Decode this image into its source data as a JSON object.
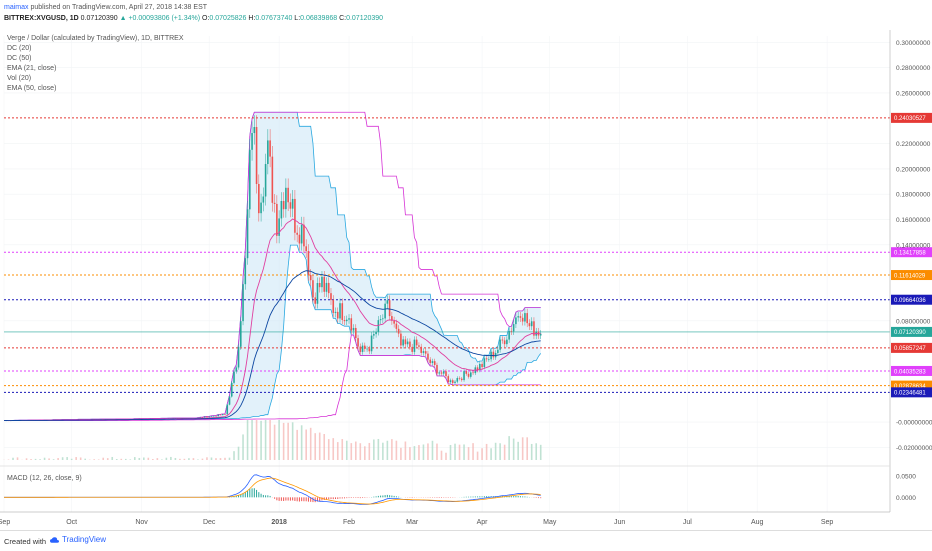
{
  "header": {
    "user": "maimax",
    "published": "published on TradingView.com, April 27, 2018 14:38 EST",
    "symbol": "BITTREX:XVGUSD, 1D",
    "last": "0.07120390",
    "change": "▲ +0.00093806 (+1.34%)",
    "o_label": "O:",
    "o": "0.07025826",
    "h_label": "H:",
    "h": "0.07673740",
    "l_label": "L:",
    "l": "0.06839868",
    "c_label": "C:",
    "c": "0.07120390"
  },
  "legend": {
    "title": "Verge / Dollar (calculated by TradingView), 1D, BITTREX",
    "indicators": [
      "DC (20)",
      "DC (50)",
      "EMA (21, close)",
      "Vol (20)",
      "EMA (50, close)"
    ],
    "macd": "MACD (12, 26, close, 9)"
  },
  "footer": {
    "created": "Created with",
    "brand": "TradingView"
  },
  "colors": {
    "up": "#26a69a",
    "down": "#ef5350",
    "dc20": "#29a8e0",
    "dc50": "#d633d6",
    "ema21": "#e040a0",
    "ema50": "#0d47a1",
    "macd": "#2962ff",
    "signal": "#ff9800",
    "red_level": "#e53935",
    "magenta_level": "#e040fb",
    "orange_level": "#fb8c00",
    "blue_level": "#1a1ab8"
  },
  "chart_data": {
    "type": "candlestick",
    "x_tick_labels": [
      "Sep",
      "Oct",
      "Nov",
      "Dec",
      "2018",
      "Feb",
      "Mar",
      "Apr",
      "May",
      "Jun",
      "Jul",
      "Aug",
      "Sep"
    ],
    "y_tick_labels": [
      "0.30000000",
      "0.28000000",
      "0.26000000",
      "0.22000000",
      "0.20000000",
      "0.18000000",
      "0.16000000",
      "0.14000000",
      "0.08000000",
      "-0.00000000",
      "-0.02000000"
    ],
    "ylim": [
      -0.03,
      0.305
    ],
    "horizontal_levels": [
      {
        "value": 0.24030527,
        "label": "0.24030527",
        "color": "#e53935"
      },
      {
        "value": 0.13417858,
        "label": "0.13417858",
        "color": "#e040fb"
      },
      {
        "value": 0.11614029,
        "label": "0.11614029",
        "color": "#fb8c00"
      },
      {
        "value": 0.09664036,
        "label": "0.09664036",
        "color": "#1a1ab8"
      },
      {
        "value": 0.05857247,
        "label": "0.05857247",
        "color": "#e53935"
      },
      {
        "value": 0.04035283,
        "label": "0.04035283",
        "color": "#e040fb"
      },
      {
        "value": 0.02878634,
        "label": "0.02878634",
        "color": "#fb8c00"
      },
      {
        "value": 0.02346481,
        "label": "0.02346481",
        "color": "#1a1ab8"
      }
    ],
    "last_price": {
      "value": 0.0712039,
      "label": "0.07120390"
    },
    "price_series": [
      {
        "date": "2017-09-01",
        "close": 0.0012
      },
      {
        "date": "2017-11-25",
        "close": 0.003
      },
      {
        "date": "2017-12-08",
        "close": 0.006
      },
      {
        "date": "2017-12-13",
        "close": 0.045
      },
      {
        "date": "2017-12-17",
        "close": 0.125
      },
      {
        "date": "2017-12-20",
        "close": 0.24
      },
      {
        "date": "2017-12-23",
        "close": 0.18
      },
      {
        "date": "2017-12-27",
        "close": 0.21
      },
      {
        "date": "2017-12-31",
        "close": 0.16
      },
      {
        "date": "2018-01-04",
        "close": 0.19
      },
      {
        "date": "2018-01-08",
        "close": 0.16
      },
      {
        "date": "2018-01-12",
        "close": 0.15
      },
      {
        "date": "2018-01-16",
        "close": 0.1
      },
      {
        "date": "2018-01-20",
        "close": 0.11
      },
      {
        "date": "2018-01-25",
        "close": 0.09
      },
      {
        "date": "2018-02-01",
        "close": 0.085
      },
      {
        "date": "2018-02-06",
        "close": 0.055
      },
      {
        "date": "2018-02-10",
        "close": 0.06
      },
      {
        "date": "2018-02-18",
        "close": 0.09
      },
      {
        "date": "2018-02-24",
        "close": 0.06
      },
      {
        "date": "2018-03-03",
        "close": 0.06
      },
      {
        "date": "2018-03-10",
        "close": 0.045
      },
      {
        "date": "2018-03-18",
        "close": 0.032
      },
      {
        "date": "2018-03-25",
        "close": 0.038
      },
      {
        "date": "2018-04-01",
        "close": 0.045
      },
      {
        "date": "2018-04-08",
        "close": 0.058
      },
      {
        "date": "2018-04-14",
        "close": 0.075
      },
      {
        "date": "2018-04-18",
        "close": 0.09
      },
      {
        "date": "2018-04-22",
        "close": 0.075
      },
      {
        "date": "2018-04-27",
        "close": 0.0712
      }
    ],
    "macd_y_tick_labels": [
      "0.0500",
      "0.0000"
    ]
  }
}
